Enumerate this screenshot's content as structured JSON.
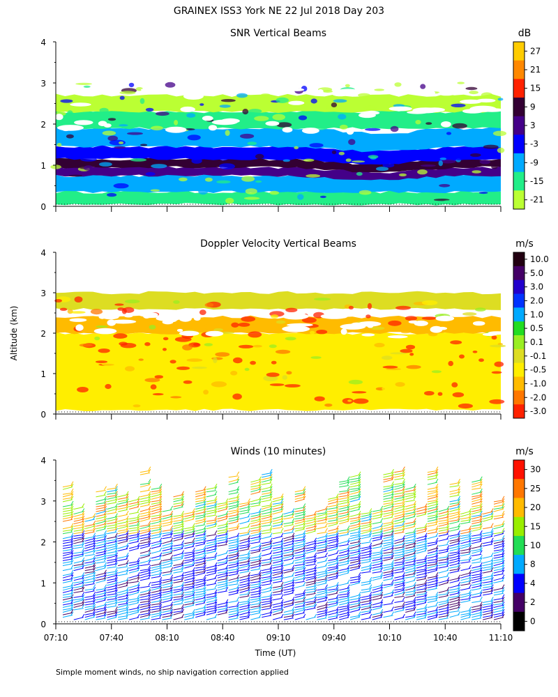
{
  "title": "GRAINEX ISS3 York NE  22 Jul 2018 Day 203",
  "footnote": "Simple moment winds, no ship navigation correction applied",
  "x_axis_label": "Time (UT)",
  "y_axis_label": "Altitude (km)",
  "chart_data": [
    {
      "type": "heatmap",
      "title": "SNR Vertical Beams",
      "unit": "dB",
      "xlabel": "",
      "ylabel": "Altitude (km)",
      "xlim": [
        "07:10",
        "11:10"
      ],
      "x_tick_labels": [],
      "ylim": [
        0,
        4
      ],
      "y_tick_labels": [
        "0",
        "1",
        "2",
        "3",
        "4"
      ],
      "colorbar_labels": [
        "27",
        "21",
        "15",
        "9",
        "3",
        "-3",
        "-9",
        "-15",
        "-21"
      ],
      "colorbar_colors": [
        "#ffcc00",
        "#ff8800",
        "#ff2200",
        "#330033",
        "#440088",
        "#0000ff",
        "#00aaff",
        "#22ee88",
        "#bbff33"
      ],
      "layers": [
        {
          "bottom_km": 0.05,
          "top_km": 0.35,
          "level": "-15"
        },
        {
          "bottom_km": 0.35,
          "top_km": 0.75,
          "level": "-9"
        },
        {
          "bottom_km": 0.75,
          "top_km": 0.95,
          "level": "3"
        },
        {
          "bottom_km": 0.95,
          "top_km": 1.15,
          "level": "9"
        },
        {
          "bottom_km": 1.15,
          "top_km": 1.45,
          "level": "-3"
        },
        {
          "bottom_km": 1.45,
          "top_km": 1.9,
          "level": "-9"
        },
        {
          "bottom_km": 1.9,
          "top_km": 2.3,
          "level": "-15"
        },
        {
          "bottom_km": 2.3,
          "top_km": 2.7,
          "level": "-21"
        }
      ]
    },
    {
      "type": "heatmap",
      "title": "Doppler Velocity Vertical Beams",
      "unit": "m/s",
      "xlabel": "",
      "ylabel": "Altitude (km)",
      "xlim": [
        "07:10",
        "11:10"
      ],
      "x_tick_labels": [],
      "ylim": [
        0,
        4
      ],
      "y_tick_labels": [
        "0",
        "1",
        "2",
        "3",
        "4"
      ],
      "colorbar_labels": [
        "10.0",
        "5.0",
        "3.0",
        "2.0",
        "1.0",
        "0.5",
        "0.1",
        "-0.1",
        "-0.5",
        "-1.0",
        "-2.0",
        "-3.0"
      ],
      "colorbar_colors": [
        "#220011",
        "#440066",
        "#2200cc",
        "#0033ff",
        "#00aaff",
        "#22dd22",
        "#99ee22",
        "#dddd22",
        "#ffee00",
        "#ffbb00",
        "#ff7700",
        "#ff2200"
      ],
      "layers": [
        {
          "bottom_km": 0.1,
          "top_km": 2.0,
          "level": "-0.5"
        },
        {
          "bottom_km": 2.0,
          "top_km": 2.4,
          "level": "-1.0"
        },
        {
          "bottom_km": 2.6,
          "top_km": 3.0,
          "level": "-0.1"
        }
      ]
    },
    {
      "type": "wind_barbs",
      "title": "Winds (10 minutes)",
      "unit": "m/s",
      "xlabel": "Time (UT)",
      "ylabel": "Altitude (km)",
      "xlim": [
        "07:10",
        "11:10"
      ],
      "x_tick_labels": [
        "07:10",
        "07:40",
        "08:10",
        "08:40",
        "09:10",
        "09:40",
        "10:10",
        "10:40",
        "11:10"
      ],
      "ylim": [
        0,
        4
      ],
      "y_tick_labels": [
        "0",
        "1",
        "2",
        "3",
        "4"
      ],
      "colorbar_labels": [
        "30",
        "25",
        "20",
        "15",
        "10",
        "8",
        "4",
        "2",
        "0"
      ],
      "colorbar_colors": [
        "#ff1100",
        "#ff7700",
        "#ffbb00",
        "#99ee00",
        "#22dd55",
        "#00aaff",
        "#0000ff",
        "#440066",
        "#000000"
      ],
      "profiles_per_hour": 6,
      "wind_direction": "mostly southerly to south-southwesterly, weak (2-8 m/s) below 2.5 km, stronger (10-30 m/s) above 3 km"
    }
  ],
  "colors": {
    "background": "#ffffff",
    "axis": "#000000"
  }
}
